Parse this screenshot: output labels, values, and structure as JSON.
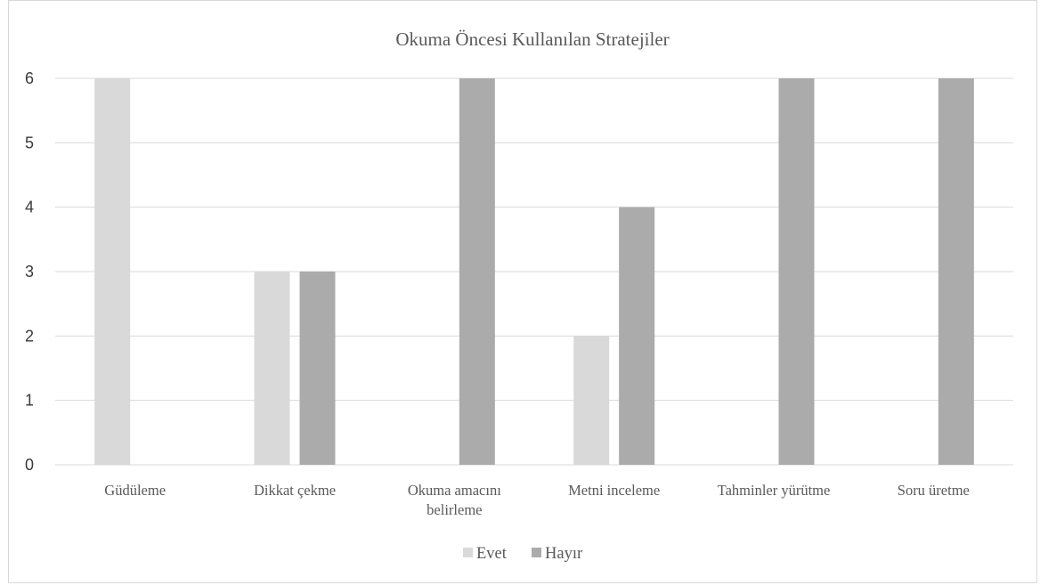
{
  "chart_data": {
    "type": "bar",
    "title": "Okuma Öncesi Kullanılan Stratejiler",
    "categories": [
      [
        "Güdüleme"
      ],
      [
        "Dikkat çekme"
      ],
      [
        "Okuma amacını",
        "belirleme"
      ],
      [
        "Metni inceleme"
      ],
      [
        "Tahminler yürütme"
      ],
      [
        "Soru üretme"
      ]
    ],
    "series": [
      {
        "name": "Evet",
        "color": "#d9d9d9",
        "values": [
          6,
          3,
          0,
          2,
          0,
          0
        ]
      },
      {
        "name": "Hayır",
        "color": "#ababab",
        "values": [
          0,
          3,
          6,
          4,
          6,
          6
        ]
      }
    ],
    "ylim": [
      0,
      6
    ],
    "yticks": [
      "0",
      "1",
      "2",
      "3",
      "4",
      "5",
      "6"
    ],
    "grid": true,
    "legend": "bottom"
  }
}
